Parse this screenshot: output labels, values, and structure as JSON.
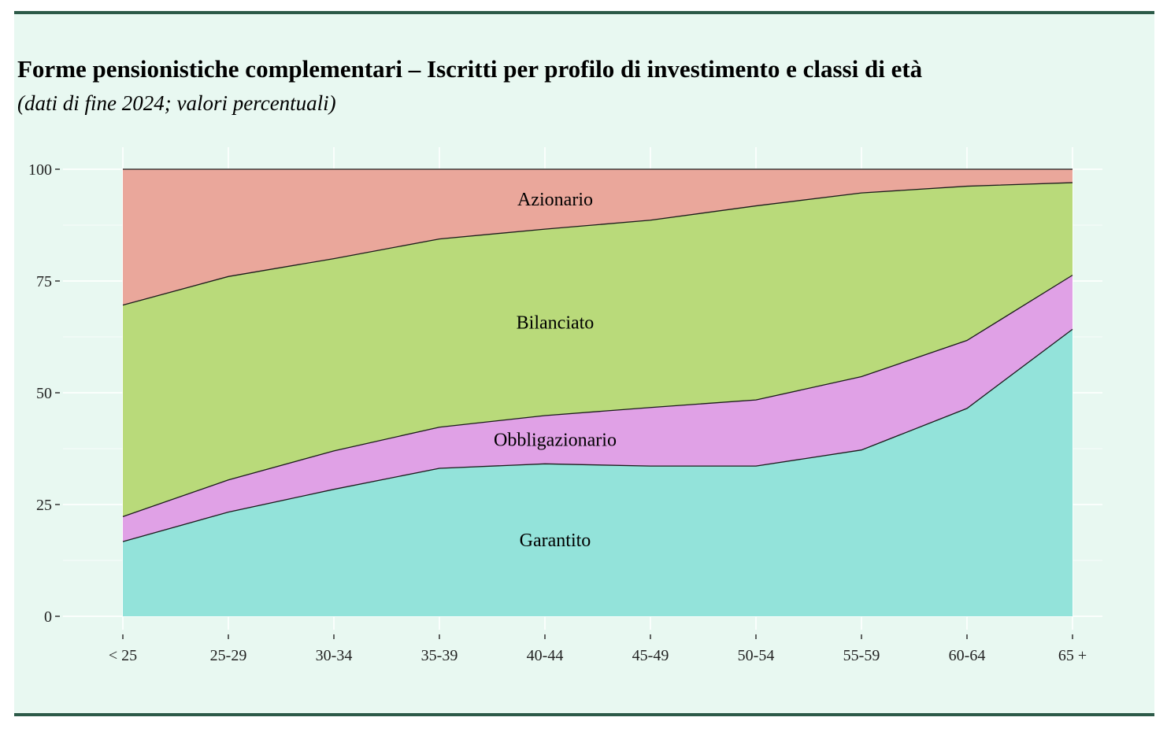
{
  "header": {
    "title": "Forme pensionistiche complementari – Iscritti per profilo di investimento e classi di età",
    "subtitle": "(dati di fine 2024; valori percentuali)"
  },
  "chart_data": {
    "type": "area",
    "stacked": true,
    "categories": [
      "< 25",
      "25-29",
      "30-34",
      "35-39",
      "40-44",
      "45-49",
      "50-54",
      "55-59",
      "60-64",
      "65 +"
    ],
    "yticks": [
      0,
      25,
      50,
      75,
      100
    ],
    "ylim": [
      0,
      100
    ],
    "grid": true,
    "series": [
      {
        "name": "Garantito",
        "color": "#93e3da",
        "values": [
          16.7,
          23.3,
          28.4,
          33.1,
          34.1,
          33.6,
          33.6,
          37.2,
          46.5,
          64.2
        ]
      },
      {
        "name": "Obbligazionario",
        "color": "#e0a1e6",
        "values": [
          5.6,
          7.2,
          8.6,
          9.2,
          10.8,
          13.1,
          14.8,
          16.4,
          15.2,
          12.1
        ]
      },
      {
        "name": "Bilanciato",
        "color": "#b9da7a",
        "values": [
          47.3,
          45.5,
          43.0,
          42.1,
          41.7,
          41.9,
          43.4,
          41.1,
          34.5,
          20.7
        ]
      },
      {
        "name": "Azionario",
        "color": "#eaa79b",
        "values": [
          30.4,
          24.0,
          20.0,
          15.6,
          13.4,
          11.4,
          8.2,
          5.3,
          3.8,
          3.0
        ]
      }
    ]
  }
}
